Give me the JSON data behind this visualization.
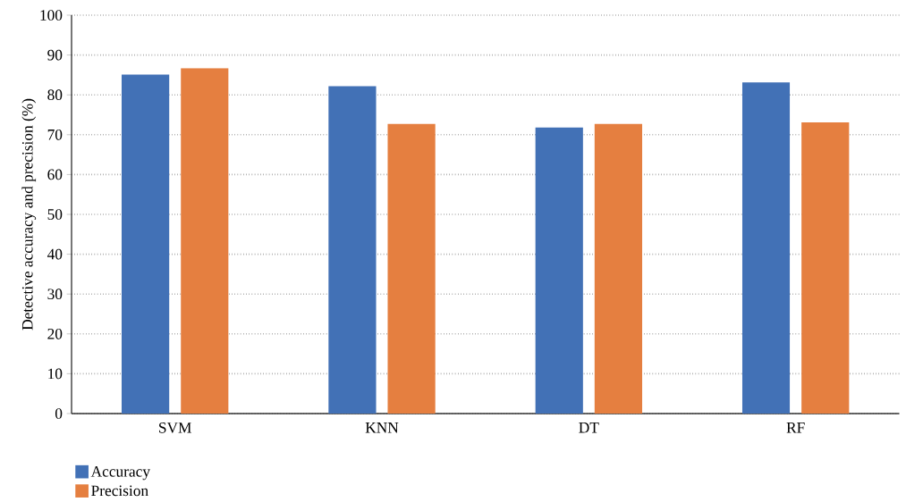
{
  "chart_data": {
    "type": "bar",
    "ylabel": "Detective accuracy and precision (%)",
    "categories": [
      "SVM",
      "KNN",
      "DT",
      "RF"
    ],
    "series": [
      {
        "name": "Accuracy",
        "color": "#4271b6",
        "values": [
          85.1,
          82.2,
          71.8,
          83.1
        ]
      },
      {
        "name": "Precision",
        "color": "#e57f40",
        "values": [
          86.7,
          72.7,
          72.7,
          73.1
        ]
      }
    ],
    "ylim": [
      0,
      100
    ],
    "yticks": [
      0,
      10,
      20,
      30,
      40,
      50,
      60,
      70,
      80,
      90,
      100
    ],
    "grid": "y",
    "legend": "bottom left"
  }
}
